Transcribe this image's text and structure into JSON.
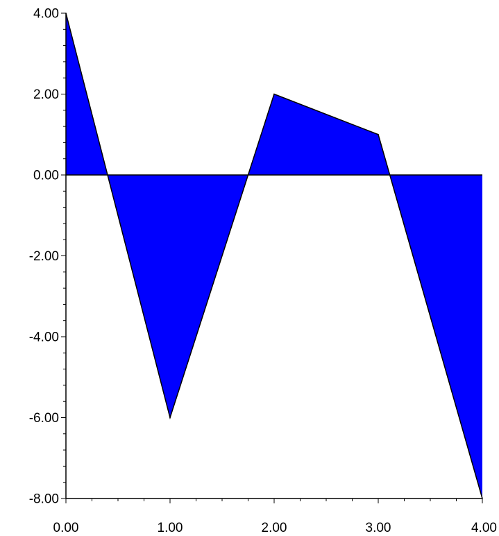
{
  "chart_data": {
    "type": "area",
    "title": "",
    "xlabel": "",
    "ylabel": "",
    "x": [
      0,
      1,
      2,
      3,
      4
    ],
    "series": [
      {
        "values": [
          4,
          -6,
          2,
          1,
          -8
        ],
        "color": "#0000ff"
      }
    ],
    "xlim": [
      0,
      4
    ],
    "ylim": [
      -8,
      4
    ],
    "x_ticks": [
      0,
      1,
      2,
      3,
      4
    ],
    "x_tick_labels": [
      "0.00",
      "1.00",
      "2.00",
      "3.00",
      "4.00"
    ],
    "y_ticks": [
      4,
      2,
      0,
      -2,
      -4,
      -6,
      -8
    ],
    "y_tick_labels": [
      "4.00",
      "2.00",
      "0.00",
      "-2.00",
      "-4.00",
      "-6.00",
      "-8.00"
    ],
    "grid": false,
    "legend": "none",
    "baseline": 0,
    "outline_color": "#000000",
    "axis_color": "#000000"
  }
}
